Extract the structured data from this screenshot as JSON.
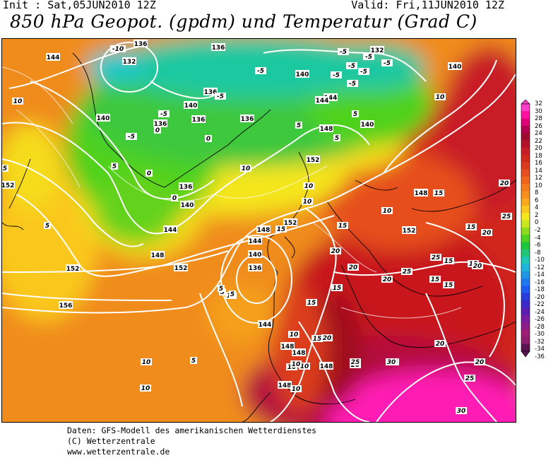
{
  "header": {
    "init": "Init : Sat,05JUN2010 12Z",
    "valid": "Valid: Fri,11JUN2010 12Z",
    "title": "850 hPa Geopot. (gpdm) und Temperatur (Grad C)"
  },
  "colorbar": {
    "ticks": [
      "32",
      "30",
      "28",
      "26",
      "24",
      "22",
      "20",
      "18",
      "16",
      "14",
      "12",
      "10",
      "8",
      "6",
      "4",
      "2",
      "0",
      "-2",
      "-4",
      "-6",
      "-8",
      "-10",
      "-12",
      "-14",
      "-16",
      "-18",
      "-20",
      "-22",
      "-24",
      "-26",
      "-28",
      "-30",
      "-32",
      "-34",
      "-36"
    ],
    "colors": [
      "#ff3cc8",
      "#ff10a0",
      "#e0007a",
      "#b40050",
      "#a00a2e",
      "#b4142a",
      "#c81e28",
      "#d22a1e",
      "#dc3c1e",
      "#e6501e",
      "#f0641e",
      "#f57a1e",
      "#f8901e",
      "#faa81e",
      "#fac81e",
      "#f5e61e",
      "#c8e61e",
      "#8cdc1e",
      "#50d21e",
      "#1ec83c",
      "#1ec878",
      "#1ec8b4",
      "#1eb4dc",
      "#1e96e6",
      "#1e78f0",
      "#1e5af0",
      "#283cdc",
      "#3c28c8",
      "#5a1eb4",
      "#781ea0",
      "#8c1e8c",
      "#a01e78",
      "#8c1e6e",
      "#5a1450"
    ]
  },
  "geopotential_labels": [
    {
      "text": "136"
    },
    {
      "text": "132"
    },
    {
      "text": "144"
    },
    {
      "text": "136"
    },
    {
      "text": "136"
    },
    {
      "text": "140"
    },
    {
      "text": "136"
    },
    {
      "text": "136"
    },
    {
      "text": "136"
    },
    {
      "text": "140"
    },
    {
      "text": "144"
    },
    {
      "text": "132"
    },
    {
      "text": "140"
    },
    {
      "text": "144"
    },
    {
      "text": "140"
    },
    {
      "text": "148"
    },
    {
      "text": "140"
    },
    {
      "text": "152"
    },
    {
      "text": "136"
    },
    {
      "text": "140"
    },
    {
      "text": "144"
    },
    {
      "text": "148"
    },
    {
      "text": "148"
    },
    {
      "text": "152"
    },
    {
      "text": "148"
    },
    {
      "text": "152"
    },
    {
      "text": "144"
    },
    {
      "text": "140"
    },
    {
      "text": "136"
    },
    {
      "text": "152"
    },
    {
      "text": "152"
    },
    {
      "text": "156"
    },
    {
      "text": "144"
    },
    {
      "text": "148"
    },
    {
      "text": "148"
    },
    {
      "text": "148"
    },
    {
      "text": "148"
    },
    {
      "text": "152"
    }
  ],
  "temperature_labels": [
    {
      "text": "-10"
    },
    {
      "text": "-5"
    },
    {
      "text": "-5"
    },
    {
      "text": "-5"
    },
    {
      "text": "-5"
    },
    {
      "text": "-5"
    },
    {
      "text": "-5"
    },
    {
      "text": "-5"
    },
    {
      "text": "-5"
    },
    {
      "text": "-5"
    },
    {
      "text": "-5"
    },
    {
      "text": "-5"
    },
    {
      "text": "10"
    },
    {
      "text": "10"
    },
    {
      "text": "5"
    },
    {
      "text": "5"
    },
    {
      "text": "0"
    },
    {
      "text": "0"
    },
    {
      "text": "0"
    },
    {
      "text": "0"
    },
    {
      "text": "5"
    },
    {
      "text": "5"
    },
    {
      "text": "10"
    },
    {
      "text": "10"
    },
    {
      "text": "5"
    },
    {
      "text": "5"
    },
    {
      "text": "10"
    },
    {
      "text": "15"
    },
    {
      "text": "10"
    },
    {
      "text": "15"
    },
    {
      "text": "20"
    },
    {
      "text": "15"
    },
    {
      "text": "20"
    },
    {
      "text": "25"
    },
    {
      "text": "15"
    },
    {
      "text": "20"
    },
    {
      "text": "20"
    },
    {
      "text": "25"
    },
    {
      "text": "20"
    },
    {
      "text": "15"
    },
    {
      "text": "15"
    },
    {
      "text": "15"
    },
    {
      "text": "15"
    },
    {
      "text": "15"
    },
    {
      "text": "20"
    },
    {
      "text": "25"
    },
    {
      "text": "15"
    },
    {
      "text": "20"
    },
    {
      "text": "10"
    },
    {
      "text": "5"
    },
    {
      "text": "5"
    },
    {
      "text": "15"
    },
    {
      "text": "20"
    },
    {
      "text": "25"
    },
    {
      "text": "10"
    },
    {
      "text": "10"
    },
    {
      "text": "10"
    },
    {
      "text": "5"
    },
    {
      "text": "30"
    },
    {
      "text": "25"
    },
    {
      "text": "20"
    },
    {
      "text": "20"
    },
    {
      "text": "30"
    },
    {
      "text": "25"
    },
    {
      "text": "10"
    },
    {
      "text": "15"
    },
    {
      "text": "10"
    },
    {
      "text": "5"
    },
    {
      "text": "10"
    },
    {
      "text": "5"
    }
  ],
  "footer": {
    "line1": "Daten: GFS-Modell des amerikanischen Wetterdienstes",
    "line2": "(C) Wetterzentrale",
    "line3": "www.wetterzentrale.de"
  }
}
